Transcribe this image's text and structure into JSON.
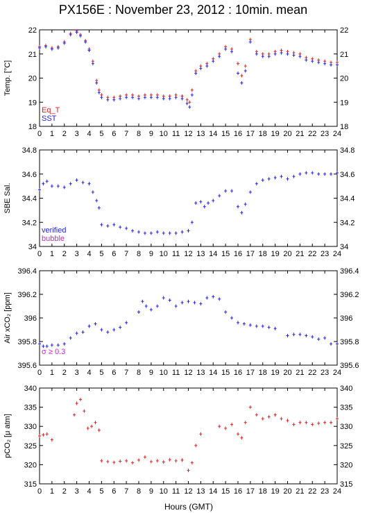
{
  "title": "PX156E : November 23, 2012 : 10min. mean",
  "xlabel": "Hours (GMT)",
  "colors": {
    "blue": "#2222ee",
    "red": "#dd2222",
    "magenta": "#cc22cc",
    "axis": "#000000"
  },
  "chart_data": [
    {
      "type": "line",
      "ylabel": "Temp. [°C]",
      "xlim": [
        0,
        24
      ],
      "ylim": [
        18,
        22
      ],
      "yticks": [
        18,
        19,
        20,
        21,
        22
      ],
      "legend": [
        {
          "label": "Eq_T",
          "color": "#dd2222"
        },
        {
          "label": "SST",
          "color": "#2222ee"
        }
      ],
      "series": [
        {
          "name": "Eq_T",
          "color": "#dd2222",
          "x": [
            0,
            0.5,
            1,
            1.5,
            2,
            2.5,
            3,
            3.3,
            3.7,
            4,
            4.3,
            4.6,
            4.8,
            5,
            5.5,
            6,
            6.5,
            7,
            7.5,
            8,
            8.5,
            9,
            9.5,
            10,
            10.5,
            11,
            11.5,
            11.9,
            12.1,
            12.3,
            12.6,
            13,
            13.5,
            14,
            14.5,
            15,
            15.5,
            16,
            16.3,
            16.6,
            17,
            17.5,
            18,
            18.5,
            19,
            19.5,
            20,
            20.5,
            21,
            21.5,
            22,
            22.5,
            23,
            23.5,
            24
          ],
          "y": [
            21.3,
            21.35,
            21.25,
            21.3,
            21.5,
            21.85,
            21.95,
            21.8,
            21.55,
            21.2,
            20.7,
            19.9,
            19.5,
            19.3,
            19.2,
            19.2,
            19.25,
            19.3,
            19.3,
            19.25,
            19.3,
            19.3,
            19.3,
            19.25,
            19.25,
            19.3,
            19.25,
            19.1,
            19.0,
            19.5,
            20.3,
            20.5,
            20.6,
            20.8,
            21.0,
            21.3,
            21.2,
            20.6,
            20.1,
            20.5,
            21.6,
            21.1,
            21.0,
            21.0,
            21.1,
            21.15,
            21.1,
            21.05,
            21.0,
            20.85,
            20.8,
            20.75,
            20.7,
            20.65,
            20.65
          ]
        },
        {
          "name": "SST",
          "color": "#2222ee",
          "x": [
            0,
            0.5,
            1,
            1.5,
            2,
            2.5,
            3,
            3.3,
            3.7,
            4,
            4.3,
            4.6,
            4.8,
            5,
            5.5,
            6,
            6.5,
            7,
            7.5,
            8,
            8.5,
            9,
            9.5,
            10,
            10.5,
            11,
            11.5,
            11.9,
            12.1,
            12.3,
            12.6,
            13,
            13.5,
            14,
            14.5,
            15,
            15.5,
            16,
            16.3,
            16.6,
            17,
            17.5,
            18,
            18.5,
            19,
            19.5,
            20,
            20.5,
            21,
            21.5,
            22,
            22.5,
            23,
            23.5,
            24
          ],
          "y": [
            21.25,
            21.3,
            21.2,
            21.25,
            21.45,
            21.8,
            21.9,
            21.75,
            21.5,
            21.15,
            20.6,
            19.8,
            19.4,
            19.2,
            19.1,
            19.1,
            19.15,
            19.2,
            19.2,
            19.15,
            19.2,
            19.2,
            19.2,
            19.15,
            19.15,
            19.2,
            19.15,
            18.95,
            18.8,
            19.3,
            20.2,
            20.4,
            20.5,
            20.7,
            20.9,
            21.2,
            21.1,
            20.2,
            19.8,
            20.3,
            21.5,
            21.0,
            20.9,
            20.9,
            21.0,
            21.05,
            21.0,
            20.95,
            20.9,
            20.75,
            20.7,
            20.65,
            20.6,
            20.55,
            20.55
          ]
        }
      ]
    },
    {
      "type": "line",
      "ylabel": "SBE Sal.",
      "xlim": [
        0,
        24
      ],
      "ylim": [
        34,
        34.8
      ],
      "yticks": [
        34,
        34.2,
        34.4,
        34.6,
        34.8
      ],
      "legend": [
        {
          "label": "verified",
          "color": "#2222ee"
        },
        {
          "label": "bubble",
          "color": "#cc22cc"
        }
      ],
      "series": [
        {
          "name": "verified",
          "color": "#2222ee",
          "x": [
            0,
            0.3,
            0.6,
            1,
            1.5,
            2,
            2.5,
            3,
            3.5,
            4,
            4.3,
            4.6,
            4.8,
            5,
            5.5,
            6,
            6.5,
            7,
            7.5,
            8,
            8.5,
            9,
            9.5,
            10,
            10.5,
            11,
            11.5,
            12,
            12.3,
            12.6,
            13,
            13.3,
            13.6,
            14,
            14.5,
            15,
            15.5,
            16,
            16.3,
            16.6,
            17,
            17.5,
            18,
            18.5,
            19,
            19.5,
            20,
            20.5,
            21,
            21.5,
            22,
            22.5,
            23,
            23.5,
            24
          ],
          "y": [
            34.47,
            34.52,
            34.54,
            34.5,
            34.5,
            34.49,
            34.52,
            34.55,
            34.53,
            34.52,
            34.45,
            34.38,
            34.32,
            34.18,
            34.17,
            34.18,
            34.16,
            34.15,
            34.13,
            34.12,
            34.11,
            34.11,
            34.12,
            34.11,
            34.11,
            34.11,
            34.12,
            34.13,
            34.2,
            34.36,
            34.37,
            34.33,
            34.36,
            34.38,
            34.42,
            34.46,
            34.46,
            34.33,
            34.28,
            34.35,
            34.45,
            34.52,
            34.55,
            34.56,
            34.57,
            34.58,
            34.56,
            34.58,
            34.6,
            34.61,
            34.61,
            34.6,
            34.6,
            34.6,
            34.61
          ]
        }
      ]
    },
    {
      "type": "scatter",
      "ylabel": "Air xCO₂ [ppm]",
      "xlim": [
        0,
        24
      ],
      "ylim": [
        395.6,
        396.4
      ],
      "yticks": [
        395.6,
        395.8,
        396,
        396.2,
        396.4
      ],
      "annotation": "σ ≥ 0.3",
      "series": [
        {
          "color": "#2222ee",
          "x": [
            0,
            0.3,
            0.6,
            1,
            1.5,
            2,
            2.5,
            3,
            3.5,
            4,
            4.5,
            5,
            5.5,
            6,
            6.5,
            7,
            8,
            8.3,
            8.6,
            9,
            9.5,
            10,
            10.5,
            11,
            11.5,
            12,
            12.5,
            13,
            13.5,
            14,
            14.5,
            15,
            15.5,
            16,
            16.5,
            17,
            17.5,
            18,
            18.5,
            19,
            20,
            20.5,
            21,
            21.5,
            22,
            22.5,
            23,
            23.5,
            24
          ],
          "y": [
            395.78,
            395.76,
            395.76,
            395.77,
            395.77,
            395.78,
            395.83,
            395.87,
            395.88,
            395.93,
            395.95,
            395.9,
            395.88,
            395.9,
            395.92,
            395.96,
            396.05,
            396.14,
            396.1,
            396.07,
            396.1,
            396.17,
            396.15,
            396.1,
            396.13,
            396.14,
            396.13,
            396.12,
            396.17,
            396.18,
            396.16,
            396.05,
            396.0,
            395.96,
            395.95,
            395.94,
            395.93,
            395.93,
            395.92,
            395.91,
            395.85,
            395.86,
            395.86,
            395.85,
            395.84,
            395.82,
            395.83,
            395.78,
            395.78
          ]
        }
      ]
    },
    {
      "type": "scatter",
      "ylabel": "pCO₂ [μ atm]",
      "xlim": [
        0,
        24
      ],
      "ylim": [
        315,
        340
      ],
      "yticks": [
        315,
        320,
        325,
        330,
        335,
        340
      ],
      "series": [
        {
          "color": "#dd2222",
          "x": [
            0,
            0.3,
            0.6,
            1,
            2.8,
            3,
            3.3,
            3.6,
            3.9,
            4.2,
            4.5,
            4.8,
            5,
            5.5,
            6,
            6.5,
            7,
            7.5,
            8,
            8.5,
            9,
            9.5,
            10,
            10.5,
            11,
            11.5,
            12,
            12.3,
            12.6,
            13,
            14.5,
            15,
            15.5,
            16,
            16.3,
            16.6,
            17,
            17.5,
            18,
            18.5,
            19,
            19.5,
            20,
            20.5,
            21,
            21.5,
            22,
            22.5,
            23,
            23.5,
            24
          ],
          "y": [
            327.5,
            327.8,
            328.0,
            326.5,
            333.0,
            336.0,
            337.0,
            334.0,
            329.5,
            330.0,
            331.0,
            329.0,
            321.0,
            320.8,
            320.6,
            320.9,
            321.0,
            320.5,
            321.2,
            322.0,
            320.8,
            321.0,
            320.7,
            321.3,
            321.0,
            321.2,
            318.5,
            320.5,
            325.0,
            328.0,
            330.0,
            329.5,
            330.5,
            328.0,
            327.0,
            331.0,
            335.0,
            333.0,
            332.0,
            332.5,
            333.0,
            332.0,
            331.5,
            330.5,
            331.0,
            331.0,
            330.5,
            330.8,
            331.0,
            331.0,
            332.0
          ]
        }
      ]
    }
  ]
}
